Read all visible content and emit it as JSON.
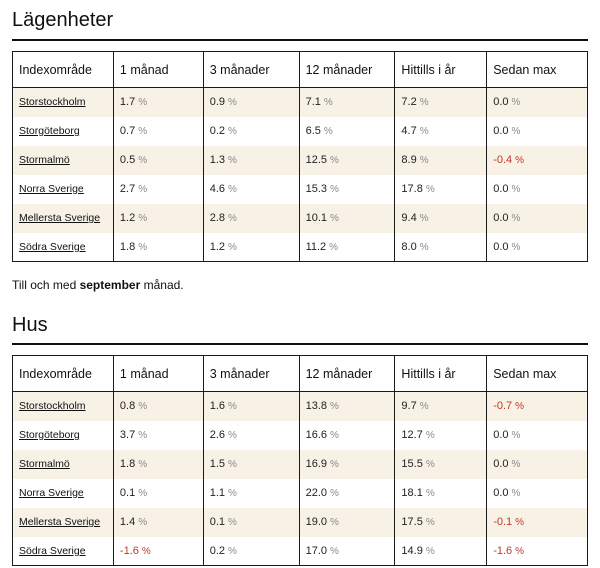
{
  "apartments": {
    "title": "Lägenheter",
    "headers": [
      "Indexområde",
      "1 månad",
      "3 månader",
      "12 månader",
      "Hittills i år",
      "Sedan max"
    ],
    "rows": [
      {
        "area": "Storstockholm",
        "values": [
          "1.7",
          "0.9",
          "7.1",
          "7.2",
          "0.0"
        ]
      },
      {
        "area": "Storgöteborg",
        "values": [
          "0.7",
          "0.2",
          "6.5",
          "4.7",
          "0.0"
        ]
      },
      {
        "area": "Stormalmö",
        "values": [
          "0.5",
          "1.3",
          "12.5",
          "8.9",
          "-0.4"
        ]
      },
      {
        "area": "Norra Sverige",
        "values": [
          "2.7",
          "4.6",
          "15.3",
          "17.8",
          "0.0"
        ]
      },
      {
        "area": "Mellersta Sverige",
        "values": [
          "1.2",
          "2.8",
          "10.1",
          "9.4",
          "0.0"
        ]
      },
      {
        "area": "Södra Sverige",
        "values": [
          "1.8",
          "1.2",
          "11.2",
          "8.0",
          "0.0"
        ]
      }
    ]
  },
  "note": {
    "prefix": "Till och med ",
    "month": "september",
    "suffix": " månad."
  },
  "houses": {
    "title": "Hus",
    "headers": [
      "Indexområde",
      "1 månad",
      "3 månader",
      "12 månader",
      "Hittills i år",
      "Sedan max"
    ],
    "rows": [
      {
        "area": "Storstockholm",
        "values": [
          "0.8",
          "1.6",
          "13.8",
          "9.7",
          "-0.7"
        ]
      },
      {
        "area": "Storgöteborg",
        "values": [
          "3.7",
          "2.6",
          "16.6",
          "12.7",
          "0.0"
        ]
      },
      {
        "area": "Stormalmö",
        "values": [
          "1.8",
          "1.5",
          "16.9",
          "15.5",
          "0.0"
        ]
      },
      {
        "area": "Norra Sverige",
        "values": [
          "0.1",
          "1.1",
          "22.0",
          "18.1",
          "0.0"
        ]
      },
      {
        "area": "Mellersta Sverige",
        "values": [
          "1.4",
          "0.1",
          "19.0",
          "17.5",
          "-0.1"
        ]
      },
      {
        "area": "Södra Sverige",
        "values": [
          "-1.6",
          "0.2",
          "17.0",
          "14.9",
          "-1.6"
        ]
      }
    ]
  },
  "unit": "%",
  "colors": {
    "alt_row_bg": "#f8f1e6",
    "negative": "#c0392b",
    "unit_gray": "#8a8a8a"
  }
}
